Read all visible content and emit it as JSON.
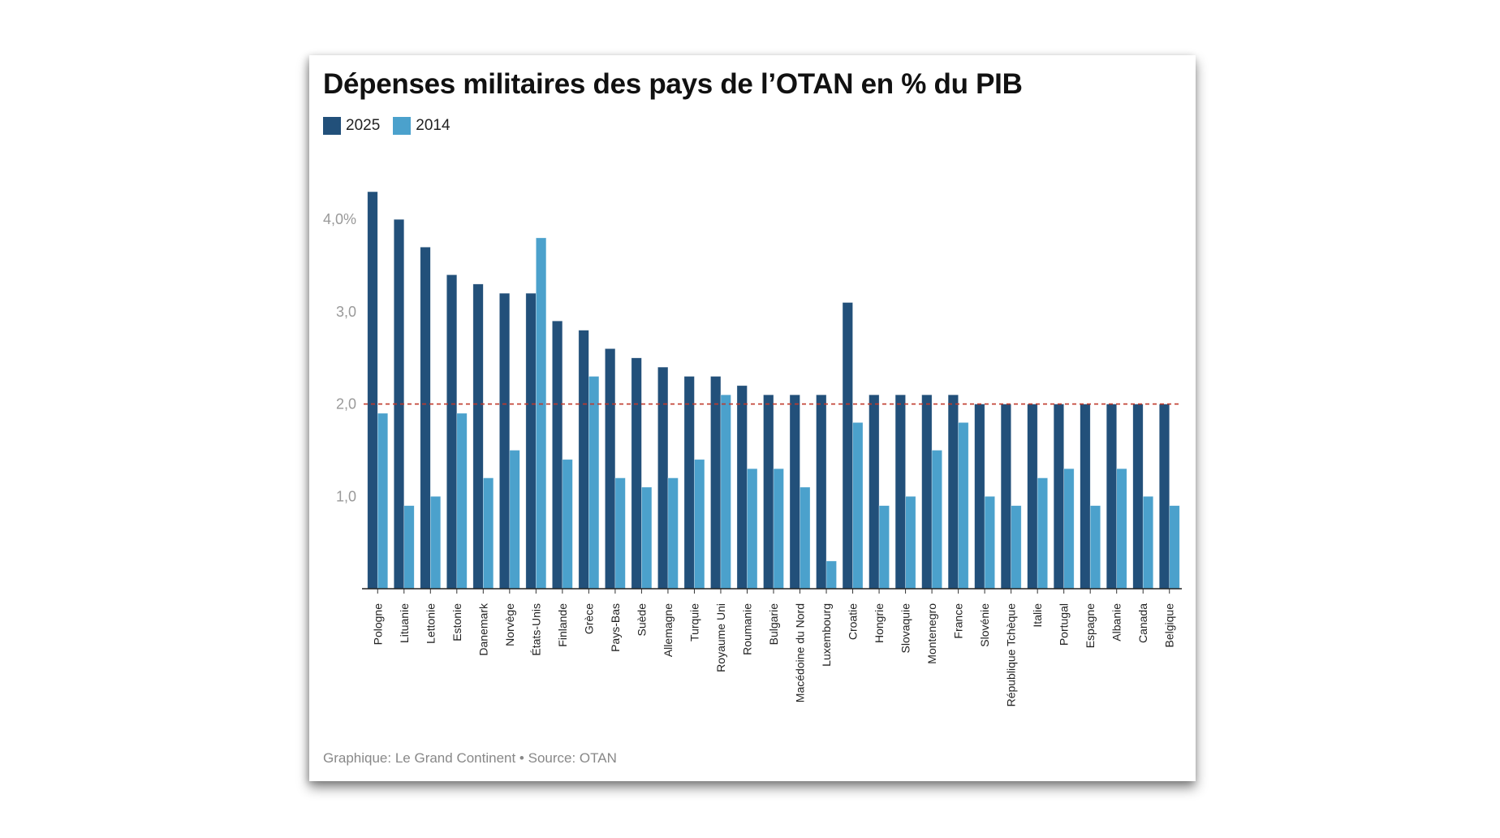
{
  "colors": {
    "series_2025": "#22507a",
    "series_2014": "#4ba1cc",
    "threshold": "#c0392b",
    "axis_text": "#999999"
  },
  "footer": "Graphique: Le Grand Continent • Source: OTAN",
  "chart_data": {
    "type": "bar",
    "title": "Dépenses militaires des pays de l’OTAN en % du PIB",
    "legend_placement": "top-left",
    "grid": false,
    "ylim": [
      0,
      4.3
    ],
    "yticks": [
      1.0,
      2.0,
      3.0,
      4.0
    ],
    "ytick_labels": [
      "1,0",
      "2,0",
      "3,0",
      "4,0%"
    ],
    "reference_line": {
      "value": 2.0,
      "style": "dashed",
      "color": "#c0392b"
    },
    "categories": [
      "Pologne",
      "Lituanie",
      "Lettonie",
      "Estonie",
      "Danemark",
      "Norvège",
      "États-Unis",
      "Finlande",
      "Grèce",
      "Pays-Bas",
      "Suède",
      "Allemagne",
      "Turquie",
      "Royaume Uni",
      "Roumanie",
      "Bulgarie",
      "Macédoine du Nord",
      "Luxembourg",
      "Croatie",
      "Hongrie",
      "Slovaquie",
      "Montenegro",
      "France",
      "Slovénie",
      "République Tchèque",
      "Italie",
      "Portugal",
      "Espagne",
      "Albanie",
      "Canada",
      "Belgique"
    ],
    "series": [
      {
        "name": "2025",
        "color": "#22507a",
        "values": [
          4.3,
          4.0,
          3.7,
          3.4,
          3.3,
          3.2,
          3.2,
          2.9,
          2.8,
          2.6,
          2.5,
          2.4,
          2.3,
          2.3,
          2.2,
          2.1,
          2.1,
          2.1,
          3.1,
          2.1,
          2.1,
          2.1,
          2.1,
          2.0,
          2.0,
          2.0,
          2.0,
          2.0,
          2.0,
          2.0,
          2.0
        ]
      },
      {
        "name": "2014",
        "color": "#4ba1cc",
        "values": [
          1.9,
          0.9,
          1.0,
          1.9,
          1.2,
          1.5,
          3.8,
          1.4,
          2.3,
          1.2,
          1.1,
          1.2,
          1.4,
          2.1,
          1.3,
          1.3,
          1.1,
          0.3,
          1.8,
          0.9,
          1.0,
          1.5,
          1.8,
          1.0,
          0.9,
          1.2,
          1.3,
          0.9,
          1.3,
          1.0,
          0.9
        ]
      }
    ]
  }
}
